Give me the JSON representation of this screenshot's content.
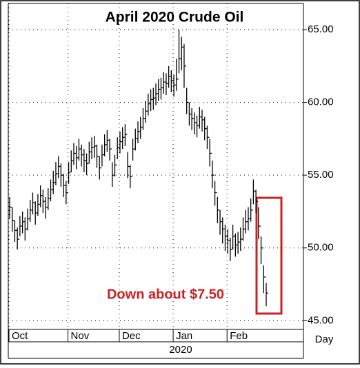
{
  "chart_data": {
    "type": "ohlc",
    "title": "April 2020 Crude Oil",
    "annotation": "Down about $7.50",
    "annotation_color": "#cc2222",
    "x_axis_label": "Day",
    "year_label": "2020",
    "categories": [
      "Oct",
      null,
      null,
      null,
      null,
      null,
      null,
      null,
      null,
      null,
      null,
      null,
      null,
      null,
      null,
      null,
      null,
      null,
      null,
      null,
      null,
      null,
      null,
      "Nov",
      null,
      null,
      null,
      null,
      null,
      null,
      null,
      null,
      null,
      null,
      null,
      null,
      null,
      null,
      null,
      null,
      null,
      null,
      null,
      "Dec",
      null,
      null,
      null,
      null,
      null,
      null,
      null,
      null,
      null,
      null,
      null,
      null,
      null,
      null,
      null,
      null,
      null,
      null,
      null,
      null,
      "Jan",
      null,
      null,
      null,
      null,
      null,
      null,
      null,
      null,
      null,
      null,
      null,
      null,
      null,
      null,
      null,
      null,
      null,
      null,
      null,
      null,
      "Feb",
      null,
      null,
      null,
      null,
      null,
      null,
      null,
      null,
      null,
      null,
      null,
      null,
      null,
      null,
      null
    ],
    "high": [
      53.5,
      52.8,
      51.9,
      51.4,
      52.2,
      52.5,
      52.1,
      52.7,
      53.3,
      53.8,
      53.2,
      53.7,
      54.3,
      54.0,
      53.5,
      54.1,
      54.7,
      55.3,
      55.9,
      56.3,
      55.8,
      55.1,
      54.6,
      55.9,
      56.7,
      57.2,
      57.0,
      57.5,
      57.1,
      56.8,
      56.5,
      57.3,
      57.6,
      57.7,
      57.1,
      56.3,
      57.1,
      57.8,
      58.1,
      57.5,
      55.9,
      56.4,
      57.6,
      58.0,
      58.3,
      58.5,
      56.6,
      55.7,
      57.5,
      58.2,
      58.7,
      59.0,
      59.6,
      60.1,
      60.6,
      60.9,
      61.0,
      61.3,
      61.6,
      61.7,
      62.1,
      62.0,
      62.5,
      62.2,
      61.9,
      63.0,
      65.0,
      64.5,
      64.0,
      61.0,
      60.0,
      59.6,
      59.3,
      59.1,
      59.7,
      59.5,
      59.0,
      58.4,
      57.5,
      56.0,
      54.6,
      53.5,
      52.6,
      52.1,
      51.6,
      51.3,
      50.7,
      51.6,
      51.0,
      51.1,
      51.4,
      52.1,
      52.6,
      52.8,
      53.4,
      54.7,
      54.0,
      52.8,
      50.8,
      48.8,
      47.6
    ],
    "low": [
      52.0,
      51.1,
      50.4,
      49.9,
      50.8,
      51.0,
      50.5,
      51.2,
      51.8,
      52.3,
      51.6,
      52.2,
      52.8,
      52.4,
      52.0,
      52.6,
      53.2,
      53.7,
      54.3,
      54.8,
      54.2,
      53.5,
      53.0,
      54.4,
      55.2,
      55.7,
      55.4,
      56.0,
      55.6,
      55.2,
      55.0,
      55.8,
      56.1,
      56.2,
      55.5,
      54.7,
      55.6,
      56.3,
      56.6,
      56.0,
      54.2,
      54.9,
      56.1,
      56.5,
      56.8,
      57.0,
      54.8,
      54.1,
      56.0,
      56.7,
      57.2,
      57.5,
      58.1,
      58.6,
      59.1,
      59.4,
      59.5,
      59.8,
      60.1,
      60.2,
      60.6,
      60.5,
      61.0,
      60.7,
      60.4,
      60.8,
      62.0,
      62.2,
      61.0,
      59.2,
      58.4,
      58.1,
      57.8,
      57.6,
      58.2,
      58.0,
      57.4,
      56.8,
      55.6,
      54.1,
      52.9,
      51.7,
      50.9,
      50.3,
      49.8,
      49.6,
      49.1,
      49.9,
      49.4,
      49.6,
      49.8,
      50.5,
      51.0,
      51.2,
      51.8,
      53.0,
      52.4,
      50.6,
      48.9,
      46.9,
      46.0
    ],
    "close": [
      52.8,
      51.9,
      51.2,
      50.6,
      51.5,
      51.8,
      51.3,
      52.0,
      52.6,
      53.1,
      52.4,
      53.0,
      53.6,
      53.2,
      52.8,
      53.4,
      54.0,
      54.5,
      55.1,
      55.6,
      55.0,
      54.3,
      53.8,
      55.2,
      56.0,
      56.5,
      56.2,
      56.8,
      56.4,
      56.0,
      55.8,
      56.6,
      56.9,
      57.0,
      56.3,
      55.5,
      56.4,
      57.1,
      57.4,
      56.8,
      55.0,
      55.7,
      56.9,
      57.3,
      57.6,
      57.8,
      55.6,
      54.9,
      56.8,
      57.5,
      58.0,
      58.3,
      58.9,
      59.4,
      59.9,
      60.2,
      60.3,
      60.6,
      60.9,
      61.0,
      61.4,
      61.3,
      61.8,
      61.5,
      61.2,
      61.6,
      63.0,
      63.8,
      62.5,
      60.0,
      59.2,
      58.9,
      58.6,
      58.4,
      59.0,
      58.8,
      58.2,
      57.6,
      56.5,
      55.0,
      53.8,
      52.6,
      51.8,
      51.3,
      50.8,
      50.5,
      49.9,
      50.8,
      50.2,
      50.4,
      50.6,
      51.3,
      51.8,
      52.0,
      52.6,
      53.9,
      53.2,
      51.5,
      50.0,
      48.0,
      46.9
    ],
    "color": "#000000",
    "ylim": [
      44.4,
      66.8
    ],
    "yticks": [
      {
        "value": 45,
        "label": "45.00"
      },
      {
        "value": 50,
        "label": "50.00"
      },
      {
        "value": 55,
        "label": "55.00"
      },
      {
        "value": 60,
        "label": "60.00"
      },
      {
        "value": 65,
        "label": "65.00"
      }
    ],
    "grid": true
  }
}
